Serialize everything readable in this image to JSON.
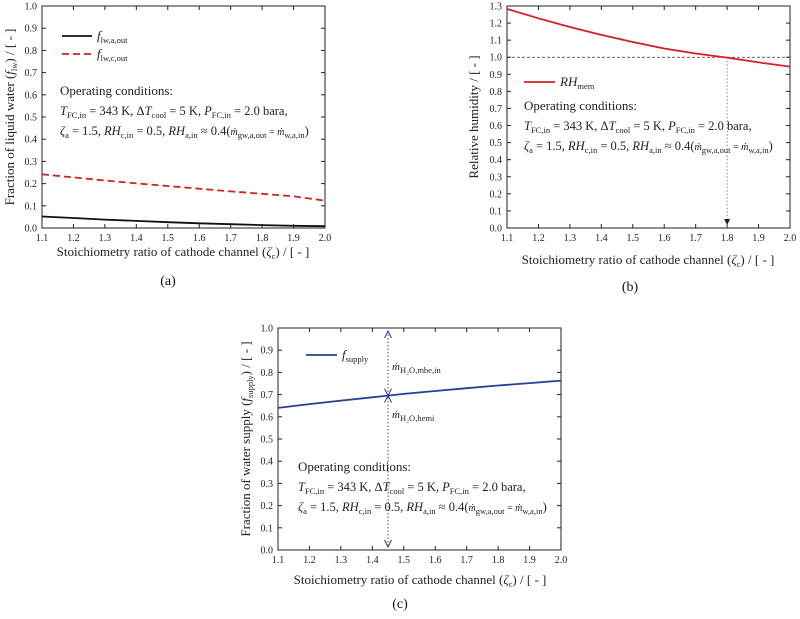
{
  "chart_data": [
    {
      "id": "a",
      "type": "line",
      "panel_label": "(a)",
      "title": "",
      "xlabel": "Stoichiometry ratio of cathode channel (ζc) / [ - ]",
      "ylabel": "Fraction of liquid water (flw) / [ - ]",
      "xlim": [
        1.1,
        2.0
      ],
      "ylim": [
        0.0,
        1.0
      ],
      "x_ticks": [
        "1.1",
        "1.2",
        "1.3",
        "1.4",
        "1.5",
        "1.6",
        "1.7",
        "1.8",
        "1.9",
        "2.0"
      ],
      "y_ticks": [
        "0.0",
        "0.1",
        "0.2",
        "0.3",
        "0.4",
        "0.5",
        "0.6",
        "0.7",
        "0.8",
        "0.9",
        "1.0"
      ],
      "legend_position": "top-left",
      "series": [
        {
          "name": "flw,a,out",
          "color": "#111111",
          "dash": "solid",
          "x": [
            1.1,
            1.2,
            1.3,
            1.4,
            1.5,
            1.6,
            1.7,
            1.8,
            1.9,
            2.0
          ],
          "y": [
            0.052,
            0.045,
            0.038,
            0.032,
            0.026,
            0.021,
            0.017,
            0.013,
            0.01,
            0.008
          ]
        },
        {
          "name": "flw,c,out",
          "color": "#d42020",
          "dash": "dashed",
          "x": [
            1.1,
            1.2,
            1.3,
            1.4,
            1.5,
            1.6,
            1.7,
            1.8,
            1.9,
            2.0
          ],
          "y": [
            0.242,
            0.228,
            0.214,
            0.201,
            0.189,
            0.177,
            0.165,
            0.154,
            0.143,
            0.123
          ]
        }
      ],
      "conditions": {
        "title": "Operating conditions:",
        "line1": "TFC,in = 343 K, ΔTcool = 5 K, PFC,in = 2.0 bara,",
        "line2": "ζa = 1.5, RHc,in = 0.5, RHa,in ≈ 0.4(ṁgw,a,out = ṁw,a,in)"
      }
    },
    {
      "id": "b",
      "type": "line",
      "panel_label": "(b)",
      "title": "",
      "xlabel": "Stoichiometry ratio of cathode channel (ζc) / [ - ]",
      "ylabel": "Relative humidity / [ - ]",
      "xlim": [
        1.1,
        2.0
      ],
      "ylim": [
        0.0,
        1.3
      ],
      "x_ticks": [
        "1.1",
        "1.2",
        "1.3",
        "1.4",
        "1.5",
        "1.6",
        "1.7",
        "1.8",
        "1.9",
        "2.0"
      ],
      "y_ticks": [
        "0.0",
        "0.1",
        "0.2",
        "0.3",
        "0.4",
        "0.5",
        "0.6",
        "0.7",
        "0.8",
        "0.9",
        "1.0",
        "1.1",
        "1.2",
        "1.3"
      ],
      "legend_position": "top-left",
      "reference_line_y": 1.0,
      "marker_x": 1.8,
      "series": [
        {
          "name": "RHmem",
          "color": "#d42020",
          "dash": "solid",
          "x": [
            1.1,
            1.2,
            1.3,
            1.4,
            1.5,
            1.6,
            1.7,
            1.8,
            1.9,
            2.0
          ],
          "y": [
            1.283,
            1.228,
            1.177,
            1.131,
            1.089,
            1.051,
            1.022,
            0.998,
            0.97,
            0.945
          ]
        }
      ],
      "conditions": {
        "title": "Operating conditions:",
        "line1": "TFC,in = 343 K, ΔTcool = 5 K, PFC,in = 2.0 bara,",
        "line2": "ζa = 1.5, RHc,in = 0.5, RHa,in ≈ 0.4(ṁgw,a,out = ṁw,a,in)"
      }
    },
    {
      "id": "c",
      "type": "line",
      "panel_label": "(c)",
      "title": "",
      "xlabel": "Stoichiometry ratio of cathode channel (ζc) / [ - ]",
      "ylabel": "Fraction of water supply (fsupply) / [ - ]",
      "xlim": [
        1.1,
        2.0
      ],
      "ylim": [
        0.0,
        1.0
      ],
      "x_ticks": [
        "1.1",
        "1.2",
        "1.3",
        "1.4",
        "1.5",
        "1.6",
        "1.7",
        "1.8",
        "1.9",
        "2.0"
      ],
      "y_ticks": [
        "0.0",
        "0.1",
        "0.2",
        "0.3",
        "0.4",
        "0.5",
        "0.6",
        "0.7",
        "0.8",
        "0.9",
        "1.0"
      ],
      "legend_position": "top-left",
      "marker_x": 1.45,
      "annotation_upper": "ṁH2O,mbe,in",
      "annotation_lower": "ṁH2O,hemi",
      "series": [
        {
          "name": "fsupply",
          "color": "#2a3f8f",
          "dash": "solid",
          "x": [
            1.1,
            1.2,
            1.3,
            1.4,
            1.5,
            1.6,
            1.7,
            1.8,
            1.9,
            2.0
          ],
          "y": [
            0.64,
            0.657,
            0.673,
            0.688,
            0.703,
            0.716,
            0.729,
            0.741,
            0.752,
            0.763
          ]
        }
      ],
      "conditions": {
        "title": "Operating conditions:",
        "line1": "TFC,in = 343 K, ΔTcool = 5 K, PFC,in = 2.0 bara,",
        "line2": "ζa = 1.5, RHc,in = 0.5, RHa,in ≈ 0.4(ṁgw,a,out = ṁw,a,in)"
      }
    }
  ]
}
